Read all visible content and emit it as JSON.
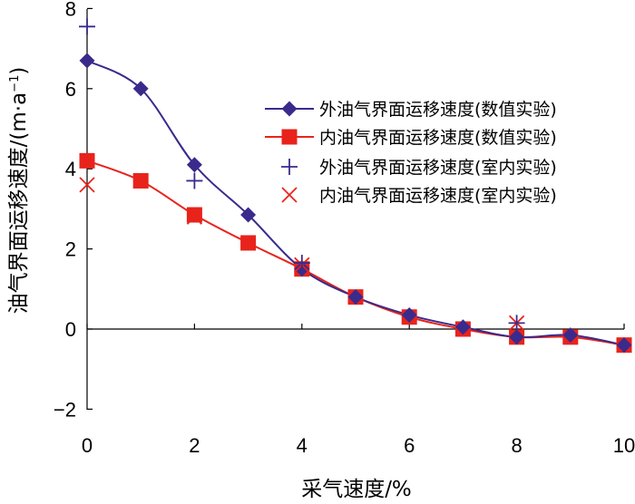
{
  "chart_data": {
    "type": "scatter",
    "xlabel": "采气速度/%",
    "ylabel": "油气界面运移速度/(m·a",
    "ylabel_sup": "−1",
    "ylabel_end": ")",
    "xlim": [
      0,
      10
    ],
    "ylim": [
      -2,
      8
    ],
    "xticks": [
      0,
      2,
      4,
      6,
      8,
      10
    ],
    "yticks": [
      -2,
      0,
      2,
      4,
      6,
      8
    ],
    "ytick_labels": [
      "−2",
      "0",
      "2",
      "4",
      "6",
      "8"
    ],
    "grid": false,
    "legend_position": "right",
    "series": [
      {
        "name": "外油气界面运移速度(数值实验)",
        "marker": "diamond",
        "line": true,
        "color": "#3a2a8c",
        "x": [
          0,
          1,
          2,
          3,
          4,
          5,
          6,
          7,
          8,
          9,
          10
        ],
        "y": [
          6.7,
          6.0,
          4.1,
          2.85,
          1.5,
          0.8,
          0.35,
          0.05,
          -0.2,
          -0.15,
          -0.4
        ]
      },
      {
        "name": "内油气界面运移速度(数值实验)",
        "marker": "square",
        "line": true,
        "color": "#e8231c",
        "x": [
          0,
          1,
          2,
          3,
          4,
          5,
          6,
          7,
          8,
          9,
          10
        ],
        "y": [
          4.2,
          3.7,
          2.85,
          2.15,
          1.5,
          0.8,
          0.3,
          0.0,
          -0.2,
          -0.2,
          -0.4
        ]
      },
      {
        "name": "外油气界面运移速度(室内实验)",
        "marker": "plus",
        "line": false,
        "color": "#3a2a8c",
        "x": [
          0,
          2,
          4,
          8
        ],
        "y": [
          7.55,
          3.7,
          1.65,
          0.15
        ]
      },
      {
        "name": "内油气界面运移速度(室内实验)",
        "marker": "x",
        "line": false,
        "color": "#e8231c",
        "x": [
          0,
          2,
          4,
          8
        ],
        "y": [
          3.6,
          2.8,
          1.6,
          0.15
        ]
      }
    ]
  }
}
